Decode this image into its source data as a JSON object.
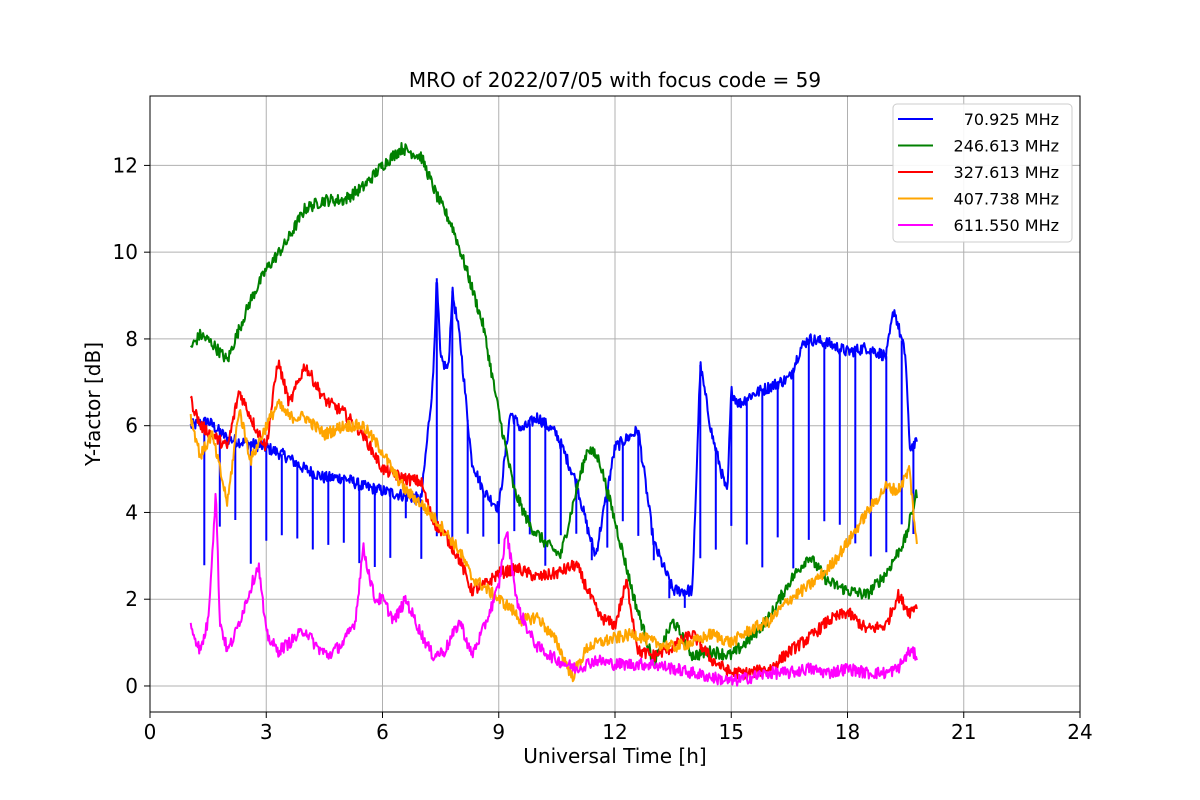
{
  "chart_data": {
    "type": "line",
    "title": "MRO of 2022/07/05 with focus code = 59",
    "xlabel": "Universal Time [h]",
    "ylabel": "Y-factor [dB]",
    "xlim": [
      0,
      24
    ],
    "ylim": [
      -0.6,
      13.6
    ],
    "xticks": [
      0,
      3,
      6,
      9,
      12,
      15,
      18,
      21,
      24
    ],
    "yticks": [
      0,
      2,
      4,
      6,
      8,
      10,
      12
    ],
    "grid": true,
    "legend_position": "top-right",
    "series": [
      {
        "name": "70.925 MHz",
        "color": "#0000ff",
        "x": [
          1.05,
          1.5,
          2.0,
          2.5,
          3.0,
          3.5,
          4.0,
          4.5,
          5.0,
          5.5,
          6.0,
          6.5,
          7.0,
          7.3,
          7.4,
          7.5,
          7.7,
          7.8,
          8.0,
          8.3,
          8.6,
          9.0,
          9.3,
          9.6,
          10.0,
          10.5,
          11.0,
          11.3,
          11.5,
          12.0,
          12.3,
          12.6,
          13.0,
          13.5,
          13.8,
          14.0,
          14.2,
          14.5,
          14.9,
          15.0,
          15.2,
          15.5,
          16.0,
          16.5,
          16.8,
          17.0,
          17.5,
          18.0,
          18.5,
          19.0,
          19.2,
          19.5,
          19.6,
          19.8
        ],
        "y": [
          6.0,
          6.1,
          5.7,
          5.6,
          5.5,
          5.3,
          5.0,
          4.8,
          4.8,
          4.6,
          4.5,
          4.4,
          4.3,
          7.0,
          9.4,
          7.5,
          7.3,
          9.1,
          8.0,
          5.2,
          4.5,
          4.1,
          6.3,
          5.9,
          6.2,
          5.8,
          4.7,
          3.6,
          3.0,
          5.5,
          5.7,
          5.9,
          3.3,
          2.2,
          2.2,
          2.2,
          7.4,
          5.8,
          4.4,
          6.8,
          6.5,
          6.7,
          6.9,
          7.1,
          7.8,
          8.0,
          7.9,
          7.7,
          7.8,
          7.6,
          8.7,
          7.6,
          5.5,
          5.6
        ],
        "dips": [
          1.4,
          1.8,
          2.2,
          2.6,
          3.0,
          3.4,
          3.8,
          4.2,
          4.6,
          5.0,
          5.4,
          5.8,
          6.2,
          6.6,
          7.0,
          7.4,
          7.8,
          8.2,
          8.6,
          9.0,
          9.4,
          9.8,
          10.2,
          10.6,
          11.0,
          11.4,
          11.8,
          12.2,
          12.6,
          13.0,
          13.4,
          13.8,
          14.2,
          14.6,
          15.0,
          15.4,
          15.8,
          16.2,
          16.6,
          17.0,
          17.4,
          17.8,
          18.2,
          18.6,
          19.0,
          19.4,
          19.7
        ],
        "dip_level": 3.3
      },
      {
        "name": "246.613 MHz",
        "color": "#008000",
        "x": [
          1.05,
          1.3,
          1.6,
          2.0,
          2.2,
          2.6,
          3.0,
          3.5,
          4.0,
          4.5,
          5.0,
          5.5,
          6.0,
          6.5,
          7.0,
          7.4,
          7.8,
          8.2,
          8.6,
          9.0,
          9.4,
          9.8,
          10.2,
          10.6,
          11.0,
          11.3,
          11.6,
          12.0,
          12.5,
          13.0,
          13.5,
          14.0,
          14.5,
          15.0,
          15.5,
          16.0,
          16.5,
          17.0,
          17.5,
          18.0,
          18.5,
          19.0,
          19.5,
          19.8
        ],
        "y": [
          7.8,
          8.1,
          7.9,
          7.5,
          8.0,
          8.9,
          9.6,
          10.2,
          11.0,
          11.2,
          11.2,
          11.5,
          12.0,
          12.4,
          12.2,
          11.3,
          10.6,
          9.5,
          8.3,
          6.3,
          4.5,
          3.7,
          3.3,
          3.0,
          4.5,
          5.5,
          5.2,
          3.8,
          2.0,
          0.5,
          1.5,
          0.7,
          0.8,
          0.7,
          1.1,
          1.6,
          2.4,
          3.0,
          2.4,
          2.2,
          2.1,
          2.6,
          3.4,
          4.5
        ]
      },
      {
        "name": "327.613 MHz",
        "color": "#ff0000",
        "x": [
          1.05,
          1.3,
          1.6,
          2.0,
          2.3,
          2.7,
          3.0,
          3.3,
          3.6,
          4.0,
          4.5,
          5.0,
          5.5,
          6.0,
          6.5,
          7.0,
          7.3,
          7.6,
          8.0,
          8.3,
          8.6,
          9.0,
          9.5,
          10.0,
          10.5,
          11.0,
          11.3,
          11.6,
          12.0,
          12.3,
          12.6,
          13.0,
          13.5,
          14.0,
          14.5,
          15.0,
          15.5,
          16.0,
          16.5,
          17.0,
          17.5,
          18.0,
          18.5,
          19.0,
          19.3,
          19.6,
          19.8
        ],
        "y": [
          6.6,
          6.0,
          5.8,
          5.5,
          6.8,
          6.0,
          5.5,
          7.5,
          6.5,
          7.4,
          6.6,
          6.3,
          5.8,
          5.0,
          4.8,
          4.7,
          3.8,
          3.5,
          2.9,
          2.2,
          2.3,
          2.6,
          2.7,
          2.5,
          2.6,
          2.8,
          2.2,
          1.6,
          1.4,
          2.4,
          0.8,
          0.7,
          0.9,
          1.2,
          0.6,
          0.3,
          0.3,
          0.4,
          0.8,
          1.1,
          1.5,
          1.7,
          1.3,
          1.4,
          2.1,
          1.7,
          1.9
        ]
      },
      {
        "name": "407.738 MHz",
        "color": "#ffa500",
        "x": [
          1.05,
          1.3,
          1.6,
          2.0,
          2.3,
          2.6,
          3.0,
          3.3,
          3.6,
          4.0,
          4.5,
          5.0,
          5.5,
          6.0,
          6.3,
          6.6,
          7.0,
          7.5,
          8.0,
          8.3,
          8.6,
          9.0,
          9.3,
          9.6,
          10.0,
          10.5,
          10.9,
          11.0,
          11.3,
          11.6,
          12.0,
          12.5,
          13.0,
          13.5,
          14.0,
          14.5,
          15.0,
          15.5,
          16.0,
          16.5,
          17.0,
          17.5,
          18.0,
          18.5,
          19.0,
          19.3,
          19.6,
          19.8
        ],
        "y": [
          6.2,
          5.3,
          5.8,
          4.2,
          6.4,
          5.2,
          6.0,
          6.5,
          6.2,
          6.2,
          5.8,
          6.0,
          6.0,
          5.4,
          4.9,
          4.5,
          4.2,
          3.7,
          3.1,
          2.5,
          2.3,
          2.0,
          1.8,
          1.5,
          1.6,
          1.0,
          0.2,
          0.4,
          0.9,
          1.0,
          1.1,
          1.2,
          1.0,
          0.9,
          1.0,
          1.2,
          1.0,
          1.3,
          1.5,
          2.0,
          2.3,
          2.7,
          3.3,
          4.0,
          4.6,
          4.5,
          5.0,
          3.1
        ]
      },
      {
        "name": "611.550 MHz",
        "color": "#ff00ff",
        "x": [
          1.05,
          1.3,
          1.5,
          1.7,
          1.8,
          2.0,
          2.2,
          2.5,
          2.8,
          3.0,
          3.3,
          3.6,
          4.0,
          4.3,
          4.6,
          5.0,
          5.3,
          5.5,
          5.8,
          6.0,
          6.3,
          6.6,
          7.0,
          7.3,
          7.6,
          8.0,
          8.3,
          8.6,
          9.0,
          9.2,
          9.5,
          9.8,
          10.0,
          10.5,
          11.0,
          11.5,
          12.0,
          12.5,
          13.0,
          13.5,
          14.0,
          14.5,
          15.0,
          15.5,
          16.0,
          16.5,
          17.0,
          17.5,
          18.0,
          18.5,
          19.0,
          19.3,
          19.6,
          19.8
        ],
        "y": [
          1.4,
          0.8,
          1.5,
          4.5,
          1.5,
          0.8,
          1.2,
          2.0,
          2.8,
          1.2,
          0.8,
          1.0,
          1.3,
          0.9,
          0.7,
          1.0,
          1.5,
          3.2,
          2.0,
          2.0,
          1.5,
          2.0,
          1.2,
          0.7,
          0.8,
          1.5,
          0.7,
          1.3,
          2.3,
          3.6,
          1.8,
          1.2,
          0.9,
          0.6,
          0.4,
          0.6,
          0.5,
          0.5,
          0.5,
          0.4,
          0.3,
          0.2,
          0.1,
          0.2,
          0.3,
          0.3,
          0.4,
          0.3,
          0.4,
          0.3,
          0.3,
          0.4,
          0.8,
          0.7
        ]
      }
    ]
  }
}
